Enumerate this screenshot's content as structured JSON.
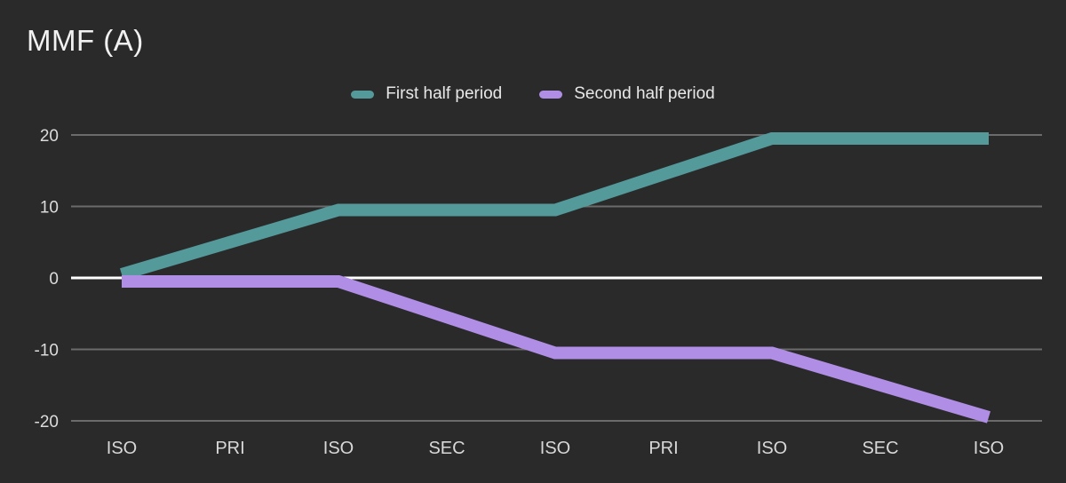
{
  "chart_data": {
    "type": "line",
    "title": "MMF (A)",
    "categories": [
      "ISO",
      "PRI",
      "ISO",
      "SEC",
      "ISO",
      "PRI",
      "ISO",
      "SEC",
      "ISO"
    ],
    "series": [
      {
        "name": "First half period",
        "color": "#549a9b",
        "values": [
          0.5,
          5,
          9.5,
          9.5,
          9.5,
          14.5,
          19.5,
          19.5,
          19.5
        ]
      },
      {
        "name": "Second half period",
        "color": "#b18ee6",
        "values": [
          -0.5,
          -0.5,
          -0.5,
          -5.5,
          -10.5,
          -10.5,
          -10.5,
          -15,
          -19.5
        ]
      }
    ],
    "y_ticks": [
      20,
      10,
      0,
      -10,
      -20
    ],
    "ylim": [
      -20,
      20
    ],
    "grid": true,
    "legend_position": "top-center",
    "colors": {
      "background": "#2a2a2b",
      "gridline": "#6b6b6b",
      "zero_line": "#ffffff",
      "axis_text": "#dcdcdc",
      "title_text": "#f1f1f1"
    }
  }
}
